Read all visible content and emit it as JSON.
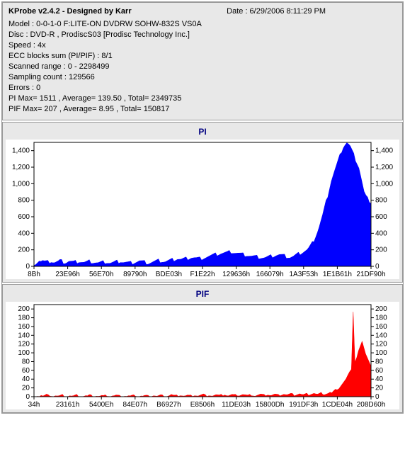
{
  "header": {
    "title": "KProbe v2.4.2 - Designed by Karr",
    "date_label": "Date : 6/29/2006 8:11:29 PM",
    "lines": [
      "Model : 0-0-1-0 F:LITE-ON DVDRW SOHW-832S  VS0A",
      "Disc : DVD-R , ProdiscS03   [Prodisc Technology Inc.]",
      "Speed : 4x",
      "ECC blocks sum (PI/PIF) : 8/1",
      "Scanned range : 0 - 2298499",
      "Sampling count : 129566",
      "Errors : 0",
      "PI Max= 1511 , Average= 139.50 , Total= 2349735",
      "PIF Max= 207 , Average= 8.95 , Total= 150817"
    ]
  },
  "pi_chart": {
    "type": "area",
    "title": "PI",
    "title_color": "#000080",
    "fill_color": "#0000ff",
    "background_color": "#ffffff",
    "panel_bg": "#e8e8e8",
    "axis_color": "#000000",
    "ylim": [
      0,
      1500
    ],
    "ytick_step": 200,
    "ytick_labels": [
      "0",
      "200",
      "400",
      "600",
      "800",
      "1,000",
      "1,200",
      "1,400"
    ],
    "xtick_labels": [
      "8Bh",
      "23E96h",
      "56E70h",
      "89790h",
      "BDE03h",
      "F1E22h",
      "129636h",
      "166079h",
      "1A3F53h",
      "1E1B61h",
      "21DF90h"
    ],
    "series": [
      35,
      40,
      55,
      70,
      60,
      65,
      55,
      50,
      48,
      55,
      60,
      50,
      45,
      50,
      55,
      65,
      58,
      50,
      45,
      50,
      60,
      58,
      52,
      48,
      50,
      55,
      60,
      55,
      50,
      45,
      48,
      52,
      58,
      55,
      50,
      48,
      45,
      40,
      42,
      45,
      48,
      52,
      50,
      45,
      40,
      42,
      45,
      50,
      55,
      58,
      62,
      55,
      50,
      48,
      45,
      42,
      40,
      45,
      50,
      55,
      60,
      65,
      60,
      55,
      50,
      45,
      42,
      45,
      50,
      55,
      60,
      65,
      70,
      68,
      65,
      62,
      60,
      65,
      70,
      75,
      80,
      85,
      90,
      95,
      90,
      85,
      88,
      92,
      95,
      100,
      105,
      110,
      108,
      105,
      100,
      98,
      95,
      100,
      105,
      110,
      115,
      120,
      125,
      130,
      135,
      140,
      145,
      150,
      155,
      158,
      160,
      162,
      165,
      170,
      175,
      170,
      165,
      160,
      155,
      150,
      145,
      140,
      138,
      135,
      130,
      125,
      120,
      118,
      115,
      112,
      110,
      108,
      106,
      104,
      105,
      110,
      115,
      120,
      125,
      130,
      135,
      138,
      140,
      135,
      130,
      125,
      120,
      115,
      110,
      115,
      120,
      130,
      140,
      150,
      160,
      170,
      180,
      190,
      200,
      220,
      250,
      280,
      320,
      370,
      420,
      480,
      550,
      620,
      700,
      780,
      860,
      950,
      1040,
      1100,
      1160,
      1220,
      1280,
      1340,
      1400,
      1450,
      1480,
      1500,
      1480,
      1450,
      1400,
      1350,
      1300,
      1250,
      1200,
      1100,
      1000,
      900,
      850,
      820,
      800,
      780
    ]
  },
  "pif_chart": {
    "type": "area",
    "title": "PIF",
    "title_color": "#000080",
    "fill_color": "#ff0000",
    "background_color": "#ffffff",
    "panel_bg": "#e8e8e8",
    "axis_color": "#000000",
    "ylim": [
      0,
      210
    ],
    "ytick_step": 20,
    "ytick_labels": [
      "0",
      "20",
      "40",
      "60",
      "80",
      "100",
      "120",
      "140",
      "160",
      "180",
      "200"
    ],
    "xtick_labels": [
      "34h",
      "23161h",
      "5400Eh",
      "84E07h",
      "B6927h",
      "E8506h",
      "11DE03h",
      "15800Dh",
      "191DF3h",
      "1CDE04h",
      "208D60h"
    ],
    "series": [
      1,
      1,
      2,
      1,
      3,
      1,
      2,
      4,
      2,
      3,
      2,
      1,
      2,
      1,
      1,
      2,
      3,
      2,
      1,
      1,
      2,
      1,
      1,
      2,
      3,
      2,
      1,
      1,
      1,
      2,
      1,
      3,
      2,
      2,
      1,
      2,
      1,
      1,
      2,
      1,
      2,
      3,
      2,
      1,
      2,
      2,
      3,
      2,
      1,
      1,
      1,
      2,
      1,
      2,
      1,
      2,
      2,
      3,
      2,
      1,
      2,
      1,
      2,
      2,
      1,
      1,
      2,
      3,
      2,
      1,
      2,
      3,
      2,
      2,
      1,
      2,
      3,
      5,
      3,
      2,
      2,
      3,
      4,
      3,
      2,
      2,
      3,
      2,
      2,
      3,
      4,
      3,
      2,
      3,
      4,
      5,
      3,
      3,
      4,
      3,
      2,
      3,
      4,
      3,
      2,
      3,
      4,
      5,
      3,
      2,
      3,
      4,
      3,
      3,
      4,
      3,
      4,
      5,
      4,
      3,
      2,
      3,
      4,
      3,
      2,
      3,
      4,
      5,
      4,
      3,
      4,
      5,
      4,
      3,
      4,
      5,
      4,
      3,
      4,
      5,
      6,
      5,
      4,
      5,
      6,
      5,
      4,
      5,
      6,
      7,
      5,
      4,
      5,
      6,
      5,
      6,
      7,
      8,
      6,
      5,
      6,
      8,
      7,
      6,
      7,
      8,
      10,
      8,
      12,
      15,
      18,
      20,
      25,
      30,
      35,
      40,
      48,
      55,
      65,
      195,
      80,
      90,
      105,
      115,
      125,
      110,
      100,
      90,
      80,
      70
    ]
  }
}
